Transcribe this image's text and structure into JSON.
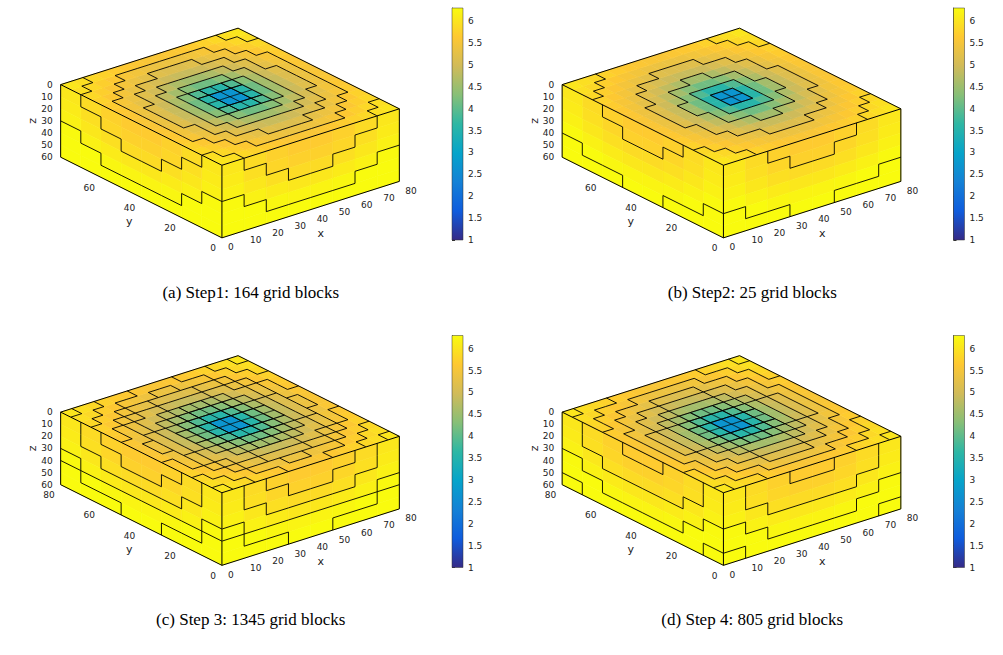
{
  "chart_data": [
    {
      "type": "heatmap",
      "title": "(a) Step1: 164 grid blocks",
      "xlabel": "x",
      "ylabel": "y",
      "zlabel": "z",
      "xlim": [
        0,
        80
      ],
      "xticks": [
        0,
        10,
        20,
        30,
        40,
        50,
        60,
        70,
        80
      ],
      "ylim": [
        0,
        80
      ],
      "yticks": [
        0,
        20,
        40,
        60
      ],
      "zlim": [
        0,
        60
      ],
      "zticks": [
        0,
        10,
        20,
        30,
        40,
        50,
        60
      ],
      "colorbar_range": [
        1,
        6.3
      ],
      "colorbar_ticks": [
        1,
        1.5,
        2,
        2.5,
        3,
        3.5,
        4,
        4.5,
        5,
        5.5,
        6
      ]
    },
    {
      "type": "heatmap",
      "title": "(b) Step2: 25 grid blocks",
      "xlabel": "x",
      "ylabel": "y",
      "zlabel": "z",
      "xlim": [
        0,
        80
      ],
      "xticks": [
        0,
        10,
        20,
        30,
        40,
        50,
        60,
        70,
        80
      ],
      "ylim": [
        0,
        80
      ],
      "yticks": [
        0,
        20,
        40,
        60
      ],
      "zlim": [
        0,
        60
      ],
      "zticks": [
        0,
        10,
        20,
        30,
        40,
        50,
        60
      ],
      "colorbar_range": [
        1,
        6.3
      ],
      "colorbar_ticks": [
        1,
        1.5,
        2,
        2.5,
        3,
        3.5,
        4,
        4.5,
        5,
        5.5,
        6
      ]
    },
    {
      "type": "heatmap",
      "title": "(c) Step 3: 1345 grid blocks",
      "xlabel": "x",
      "ylabel": "y",
      "zlabel": "z",
      "xlim": [
        0,
        80
      ],
      "xticks": [
        0,
        10,
        20,
        30,
        40,
        50,
        60,
        70,
        80
      ],
      "ylim": [
        0,
        80
      ],
      "yticks": [
        0,
        20,
        40,
        60,
        80
      ],
      "zlim": [
        0,
        60
      ],
      "zticks": [
        0,
        10,
        20,
        30,
        40,
        50,
        60
      ],
      "colorbar_range": [
        1,
        6.3
      ],
      "colorbar_ticks": [
        1,
        1.5,
        2,
        2.5,
        3,
        3.5,
        4,
        4.5,
        5,
        5.5,
        6
      ]
    },
    {
      "type": "heatmap",
      "title": "(d) Step 4: 805 grid blocks",
      "xlabel": "x",
      "ylabel": "y",
      "zlabel": "z",
      "xlim": [
        0,
        80
      ],
      "xticks": [
        0,
        10,
        20,
        30,
        40,
        50,
        60,
        70,
        80
      ],
      "ylim": [
        0,
        80
      ],
      "yticks": [
        0,
        20,
        40,
        60,
        80
      ],
      "zlim": [
        0,
        60
      ],
      "zticks": [
        0,
        10,
        20,
        30,
        40,
        50,
        60
      ],
      "colorbar_range": [
        1,
        6.3
      ],
      "colorbar_ticks": [
        1,
        1.5,
        2,
        2.5,
        3,
        3.5,
        4,
        4.5,
        5,
        5.5,
        6
      ]
    }
  ],
  "cells": {
    "top": [
      [
        6.03,
        5.94,
        5.85,
        5.77,
        5.69,
        5.63,
        5.59,
        5.56,
        5.56,
        5.59,
        5.63,
        5.69,
        5.77,
        5.85,
        5.94,
        6.03
      ],
      [
        5.94,
        5.84,
        5.73,
        5.63,
        5.54,
        5.46,
        5.4,
        5.37,
        5.37,
        5.4,
        5.46,
        5.54,
        5.63,
        5.73,
        5.84,
        5.94
      ],
      [
        5.85,
        5.73,
        5.61,
        5.49,
        5.37,
        5.27,
        5.19,
        5.15,
        5.15,
        5.19,
        5.27,
        5.37,
        5.49,
        5.61,
        5.73,
        5.85
      ],
      [
        5.77,
        5.63,
        5.49,
        5.34,
        5.19,
        5.06,
        4.95,
        4.89,
        4.89,
        4.95,
        5.06,
        5.19,
        5.34,
        5.49,
        5.63,
        5.77
      ],
      [
        5.69,
        5.54,
        5.37,
        5.19,
        5.01,
        4.82,
        4.66,
        4.57,
        4.57,
        4.66,
        4.82,
        5.01,
        5.19,
        5.37,
        5.54,
        5.69
      ],
      [
        5.63,
        5.46,
        5.27,
        5.06,
        4.82,
        4.57,
        4.32,
        4.15,
        4.15,
        4.32,
        4.57,
        4.82,
        5.06,
        5.27,
        5.46,
        5.63
      ],
      [
        5.59,
        5.4,
        5.19,
        4.95,
        4.66,
        4.32,
        3.92,
        3.57,
        3.57,
        3.92,
        4.32,
        4.66,
        4.95,
        5.19,
        5.4,
        5.59
      ],
      [
        5.56,
        5.37,
        5.15,
        4.89,
        4.57,
        4.15,
        3.57,
        2.7,
        2.7,
        3.57,
        4.15,
        4.57,
        4.89,
        5.15,
        5.37,
        5.56
      ],
      [
        5.56,
        5.37,
        5.15,
        4.89,
        4.57,
        4.15,
        3.57,
        2.7,
        2.7,
        3.57,
        4.15,
        4.57,
        4.89,
        5.15,
        5.37,
        5.56
      ],
      [
        5.59,
        5.4,
        5.19,
        4.95,
        4.66,
        4.32,
        3.92,
        3.57,
        3.57,
        3.92,
        4.32,
        4.66,
        4.95,
        5.19,
        5.4,
        5.59
      ],
      [
        5.63,
        5.46,
        5.27,
        5.06,
        4.82,
        4.57,
        4.32,
        4.15,
        4.15,
        4.32,
        4.57,
        4.82,
        5.06,
        5.27,
        5.46,
        5.63
      ],
      [
        5.69,
        5.54,
        5.37,
        5.19,
        5.01,
        4.82,
        4.66,
        4.57,
        4.57,
        4.66,
        4.82,
        5.01,
        5.19,
        5.37,
        5.54,
        5.69
      ],
      [
        5.77,
        5.63,
        5.49,
        5.34,
        5.19,
        5.06,
        4.95,
        4.89,
        4.89,
        4.95,
        5.06,
        5.19,
        5.34,
        5.49,
        5.63,
        5.77
      ],
      [
        5.85,
        5.73,
        5.61,
        5.49,
        5.37,
        5.27,
        5.19,
        5.15,
        5.15,
        5.19,
        5.27,
        5.37,
        5.49,
        5.61,
        5.73,
        5.85
      ],
      [
        5.94,
        5.84,
        5.73,
        5.63,
        5.54,
        5.46,
        5.4,
        5.37,
        5.37,
        5.4,
        5.46,
        5.54,
        5.63,
        5.73,
        5.84,
        5.94
      ],
      [
        6.03,
        5.94,
        5.85,
        5.77,
        5.69,
        5.63,
        5.59,
        5.56,
        5.56,
        5.59,
        5.63,
        5.69,
        5.77,
        5.85,
        5.94,
        6.03
      ]
    ],
    "side_y0": [
      [
        6.04,
        5.88,
        5.75,
        5.67,
        5.67,
        5.75,
        5.88,
        6.04
      ],
      [
        6.09,
        5.94,
        5.82,
        5.75,
        5.75,
        5.82,
        5.94,
        6.09
      ],
      [
        6.17,
        6.04,
        5.94,
        5.88,
        5.88,
        5.94,
        6.04,
        6.17
      ],
      [
        6.28,
        6.17,
        6.09,
        6.04,
        6.04,
        6.09,
        6.17,
        6.28
      ],
      [
        6.4,
        6.31,
        6.24,
        6.21,
        6.21,
        6.24,
        6.31,
        6.4
      ],
      [
        6.53,
        6.46,
        6.4,
        6.37,
        6.37,
        6.4,
        6.46,
        6.53
      ]
    ],
    "side_x0": [
      [
        6.04,
        5.88,
        5.75,
        5.67,
        5.67,
        5.75,
        5.88,
        6.04
      ],
      [
        6.09,
        5.94,
        5.82,
        5.75,
        5.75,
        5.82,
        5.94,
        6.09
      ],
      [
        6.17,
        6.04,
        5.94,
        5.88,
        5.88,
        5.94,
        6.04,
        6.17
      ],
      [
        6.28,
        6.17,
        6.09,
        6.04,
        6.04,
        6.09,
        6.17,
        6.28
      ],
      [
        6.4,
        6.31,
        6.24,
        6.21,
        6.21,
        6.24,
        6.31,
        6.4
      ],
      [
        6.53,
        6.46,
        6.4,
        6.37,
        6.37,
        6.4,
        6.46,
        6.53
      ]
    ]
  }
}
